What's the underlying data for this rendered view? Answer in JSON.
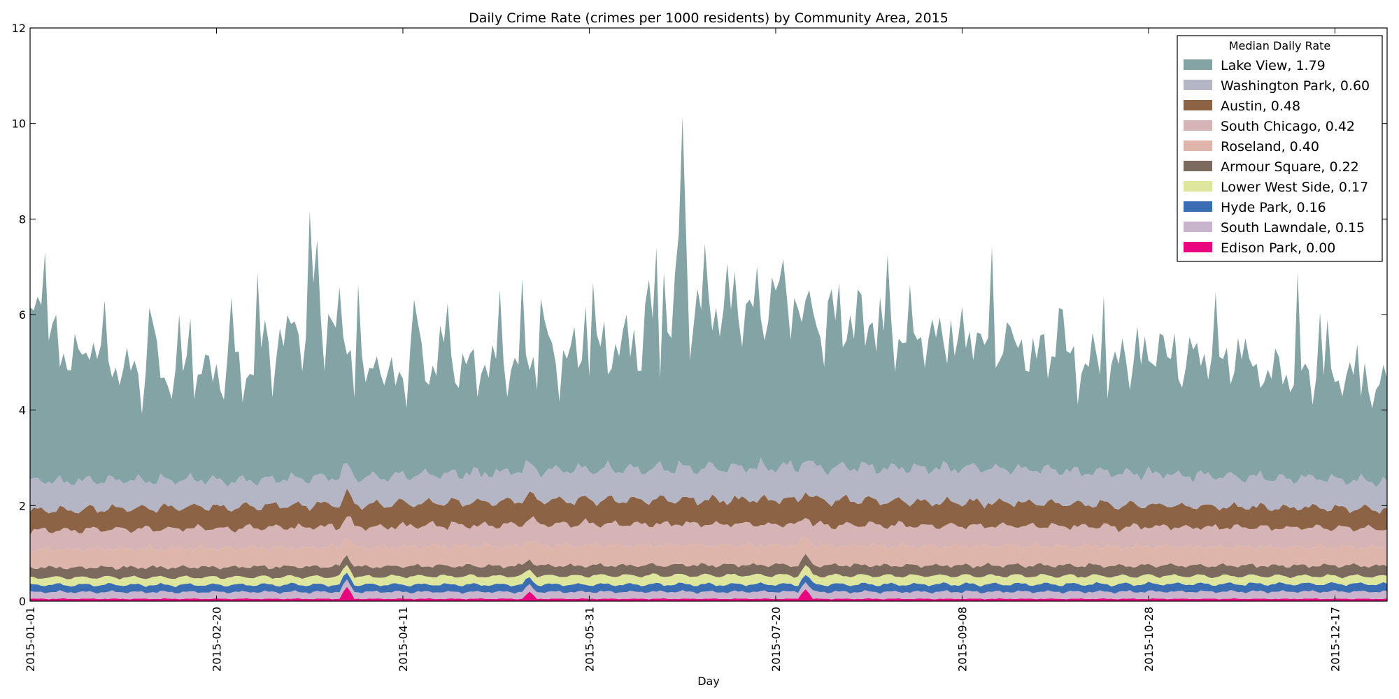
{
  "chart_data": {
    "type": "area",
    "stacked": true,
    "title": "Daily Crime Rate (crimes per 1000 residents) by Community Area, 2015",
    "xlabel": "Day",
    "ylabel": "",
    "x_range": [
      "2015-01-01",
      "2015-12-31"
    ],
    "ylim": [
      0,
      12
    ],
    "yticks": [
      0,
      2,
      4,
      6,
      8,
      10,
      12
    ],
    "xticks": [
      "2015-01-01",
      "2015-02-20",
      "2015-04-11",
      "2015-05-31",
      "2015-07-20",
      "2015-09-08",
      "2015-10-28",
      "2015-12-17"
    ],
    "grid": false,
    "legend": {
      "title": "Median Daily Rate",
      "placement": "top-right"
    },
    "series": [
      {
        "name": "Lake View, 1.79",
        "area": "Lake View",
        "median": 1.79,
        "color": "#84a3a5",
        "profile": [
          [
            "2015-01-01",
            3.3
          ],
          [
            "2015-01-15",
            2.5
          ],
          [
            "2015-02-10",
            2.1
          ],
          [
            "2015-03-01",
            2.4
          ],
          [
            "2015-03-22",
            3.4
          ],
          [
            "2015-04-01",
            2.0
          ],
          [
            "2015-04-20",
            2.3
          ],
          [
            "2015-05-10",
            2.2
          ],
          [
            "2015-06-15",
            2.7
          ],
          [
            "2015-07-01",
            3.4
          ],
          [
            "2015-08-01",
            3.0
          ],
          [
            "2015-09-10",
            2.6
          ],
          [
            "2015-10-10",
            2.3
          ],
          [
            "2015-11-10",
            2.3
          ],
          [
            "2015-12-20",
            2.1
          ],
          [
            "2015-12-31",
            1.6
          ]
        ],
        "peaks": [
          [
            "2015-01-17",
            2.0
          ],
          [
            "2015-02-10",
            3.5
          ],
          [
            "2015-03-25",
            4.0
          ],
          [
            "2015-04-15",
            3.2
          ],
          [
            "2015-05-20",
            2.8
          ],
          [
            "2015-06-16",
            4.0
          ],
          [
            "2015-06-25",
            7.3
          ],
          [
            "2015-07-25",
            3.6
          ],
          [
            "2015-08-12",
            3.5
          ],
          [
            "2015-09-05",
            3.2
          ],
          [
            "2015-09-20",
            3.1
          ],
          [
            "2015-10-05",
            3.4
          ],
          [
            "2015-11-01",
            3.0
          ],
          [
            "2015-11-15",
            3.9
          ],
          [
            "2015-12-15",
            3.4
          ]
        ]
      },
      {
        "name": "Washington Park, 0.60",
        "area": "Washington Park",
        "median": 0.6,
        "color": "#b4b6c6",
        "profile": [
          [
            "2015-01-01",
            0.62
          ],
          [
            "2015-03-01",
            0.55
          ],
          [
            "2015-06-15",
            0.65
          ],
          [
            "2015-09-10",
            0.72
          ],
          [
            "2015-12-31",
            0.58
          ]
        ]
      },
      {
        "name": "Austin, 0.48",
        "area": "Austin",
        "median": 0.48,
        "color": "#8d6345",
        "profile": [
          [
            "2015-01-01",
            0.42
          ],
          [
            "2015-05-25",
            0.5
          ],
          [
            "2015-08-01",
            0.52
          ],
          [
            "2015-12-31",
            0.4
          ]
        ]
      },
      {
        "name": "South Chicago, 0.42",
        "area": "South Chicago",
        "median": 0.42,
        "color": "#d6b3b5",
        "profile": [
          [
            "2015-01-01",
            0.4
          ],
          [
            "2015-06-01",
            0.45
          ],
          [
            "2015-12-31",
            0.4
          ]
        ]
      },
      {
        "name": "Roseland, 0.40",
        "area": "Roseland",
        "median": 0.4,
        "color": "#deb5aa",
        "profile": [
          [
            "2015-01-01",
            0.38
          ],
          [
            "2015-06-01",
            0.42
          ],
          [
            "2015-12-31",
            0.38
          ]
        ]
      },
      {
        "name": "Armour Square, 0.22",
        "area": "Armour Square",
        "median": 0.22,
        "color": "#7d6a5e",
        "profile": [
          [
            "2015-01-01",
            0.21
          ],
          [
            "2015-12-31",
            0.22
          ]
        ]
      },
      {
        "name": "Lower West Side, 0.17",
        "area": "Lower West Side",
        "median": 0.17,
        "color": "#dde69c",
        "profile": [
          [
            "2015-01-01",
            0.15
          ],
          [
            "2015-07-01",
            0.19
          ],
          [
            "2015-12-31",
            0.16
          ]
        ]
      },
      {
        "name": "Hyde Park, 0.16",
        "area": "Hyde Park",
        "median": 0.16,
        "color": "#3b6db2",
        "profile": [
          [
            "2015-01-01",
            0.15
          ],
          [
            "2015-12-31",
            0.16
          ]
        ]
      },
      {
        "name": "South Lawndale, 0.15",
        "area": "South Lawndale",
        "median": 0.15,
        "color": "#c8b4cc",
        "profile": [
          [
            "2015-01-01",
            0.14
          ],
          [
            "2015-12-31",
            0.15
          ]
        ]
      },
      {
        "name": "Edison Park, 0.00",
        "area": "Edison Park",
        "median": 0.0,
        "color": "#e8077f",
        "profile": [
          [
            "2015-01-01",
            0.05
          ],
          [
            "2015-12-31",
            0.05
          ]
        ],
        "peaks": [
          [
            "2015-03-27",
            0.3
          ],
          [
            "2015-05-15",
            0.2
          ],
          [
            "2015-07-28",
            0.25
          ]
        ]
      }
    ]
  }
}
